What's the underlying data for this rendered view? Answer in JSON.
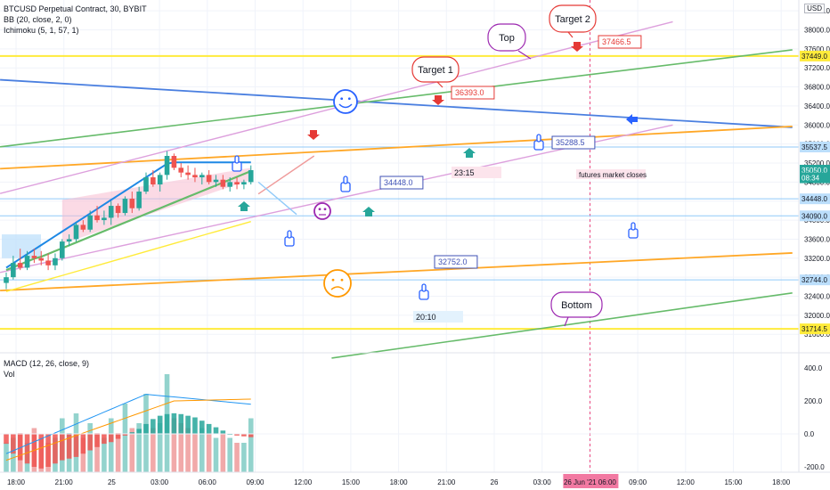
{
  "header": {
    "symbol_line": "BTCUSD Perpetual Contract, 30, BYBIT",
    "bb_line": "BB (20, close, 2, 0)",
    "ichimoku_line": "Ichimoku (5, 1, 57, 1)",
    "currency": "USD"
  },
  "lower_pane": {
    "macd_line": "MACD (12, 26, close, 9)",
    "vol_line": "Vol"
  },
  "colors": {
    "up": "#26a69a",
    "down": "#ef5350",
    "bb": "#2962ff",
    "ichi_green": "#4caf50",
    "ichi_yellow": "#fbc02d",
    "cloud": "#f8bbd0",
    "orange": "#ff9800",
    "violet": "#ce93d8",
    "blue_line": "#2962ff",
    "yellow_h": "#ffeb3b"
  },
  "chart_data": {
    "type": "candlestick",
    "symbol": "BTCUSD",
    "interval": "30",
    "price_axis": {
      "ticks": [
        "38400.0",
        "38000.0",
        "37600.0",
        "37200.0",
        "36800.0",
        "36400.0",
        "36000.0",
        "35600.0",
        "35200.0",
        "34800.0",
        "34400.0",
        "34000.0",
        "33600.0",
        "33200.0",
        "32800.0",
        "32400.0",
        "32000.0",
        "31600.0"
      ],
      "ylim": [
        31580,
        38600
      ]
    },
    "time_axis": [
      "18:00",
      "21:00",
      "25",
      "03:00",
      "06:00",
      "09:00",
      "12:00",
      "15:00",
      "18:00",
      "21:00",
      "26",
      "03:00",
      "26 Jun '21 06:00",
      "09:00",
      "12:00",
      "15:00",
      "18:00"
    ],
    "candles": [
      [
        0,
        32680,
        32900,
        32550,
        32800
      ],
      [
        1,
        32800,
        33250,
        32750,
        33100
      ],
      [
        2,
        33100,
        33400,
        32950,
        33000
      ],
      [
        3,
        33000,
        33350,
        32950,
        33250
      ],
      [
        4,
        33250,
        33400,
        33100,
        33200
      ],
      [
        5,
        33200,
        33350,
        33050,
        33150
      ],
      [
        6,
        33150,
        33300,
        32950,
        33050
      ],
      [
        7,
        33050,
        33300,
        32950,
        33200
      ],
      [
        8,
        33200,
        33600,
        33150,
        33550
      ],
      [
        9,
        33550,
        33700,
        33450,
        33600
      ],
      [
        10,
        33600,
        33950,
        33550,
        33900
      ],
      [
        11,
        33900,
        34000,
        33750,
        33800
      ],
      [
        12,
        33800,
        34200,
        33750,
        34100
      ],
      [
        13,
        34100,
        34300,
        33950,
        34000
      ],
      [
        14,
        34000,
        34200,
        33900,
        34050
      ],
      [
        15,
        34050,
        34400,
        33900,
        34300
      ],
      [
        16,
        34300,
        34350,
        34050,
        34150
      ],
      [
        17,
        34150,
        34500,
        34100,
        34450
      ],
      [
        18,
        34450,
        34600,
        34150,
        34250
      ],
      [
        19,
        34250,
        34700,
        34200,
        34600
      ],
      [
        20,
        34600,
        35000,
        34550,
        34900
      ],
      [
        21,
        34900,
        35050,
        34700,
        34750
      ],
      [
        22,
        34750,
        35000,
        34600,
        34950
      ],
      [
        23,
        34950,
        35450,
        34850,
        35350
      ],
      [
        24,
        35350,
        35400,
        35050,
        35100
      ],
      [
        25,
        35100,
        35200,
        34900,
        35000
      ],
      [
        26,
        35000,
        35150,
        34850,
        34950
      ],
      [
        27,
        34950,
        35100,
        34800,
        34900
      ],
      [
        28,
        34900,
        35000,
        34750,
        34950
      ],
      [
        29,
        34950,
        35050,
        34750,
        34800
      ],
      [
        30,
        34800,
        34950,
        34700,
        34850
      ],
      [
        31,
        34850,
        34950,
        34650,
        34700
      ],
      [
        32,
        34700,
        34900,
        34600,
        34800
      ],
      [
        33,
        34800,
        34900,
        34650,
        34750
      ],
      [
        34,
        34750,
        34850,
        34650,
        34800
      ],
      [
        35,
        34800,
        35150,
        34750,
        35050
      ]
    ],
    "price_labels": [
      {
        "text": "37449.0",
        "price": 37449,
        "color": "yellow"
      },
      {
        "text": "35537.5",
        "price": 35537.5,
        "color": "blue"
      },
      {
        "text": "35050.0",
        "price": 35050,
        "color": "green"
      },
      {
        "text": "08:34",
        "price": 34890,
        "color": "green"
      },
      {
        "text": "34448.0",
        "price": 34448,
        "color": "blue"
      },
      {
        "text": "34090.0",
        "price": 34090,
        "color": "blue"
      },
      {
        "text": "32744.0",
        "price": 32744,
        "color": "blue"
      },
      {
        "text": "31714.5",
        "price": 31714.5,
        "color": "yellow"
      }
    ],
    "annotations": {
      "callouts": [
        "Top",
        "Target 2",
        "Target 1",
        "Bottom"
      ],
      "price_notes": [
        "37466.5",
        "36393.0",
        "35288.5",
        "34448.0",
        "32752.0"
      ],
      "text_notes": [
        "futures market closes",
        "23:15",
        "20:10"
      ]
    },
    "macd_axis": [
      "400.0",
      "200.0",
      "0.0",
      "-200.0"
    ],
    "macd_hist": [
      -60,
      -120,
      -160,
      -180,
      -200,
      -210,
      -200,
      -180,
      -160,
      -150,
      -140,
      -120,
      -100,
      -80,
      -60,
      -50,
      -30,
      -10,
      10,
      30,
      60,
      90,
      110,
      120,
      125,
      120,
      110,
      100,
      80,
      60,
      40,
      20,
      0,
      -10,
      -15,
      -20
    ],
    "volume_rel": [
      0.3,
      0.35,
      0.4,
      0.3,
      0.45,
      0.35,
      0.3,
      0.35,
      0.55,
      0.4,
      0.6,
      0.35,
      0.5,
      0.4,
      0.35,
      0.55,
      0.4,
      0.7,
      0.45,
      0.5,
      0.8,
      0.45,
      0.5,
      1.0,
      0.55,
      0.5,
      0.45,
      0.4,
      0.45,
      0.4,
      0.35,
      0.4,
      0.35,
      0.3,
      0.3,
      0.55
    ]
  }
}
